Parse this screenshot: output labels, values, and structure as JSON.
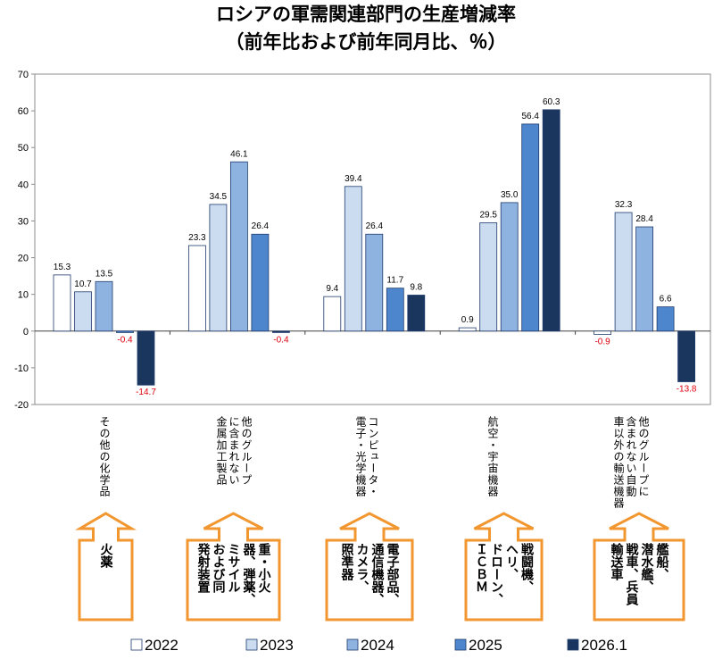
{
  "chart_data": {
    "type": "bar",
    "title": "ロシアの軍需関連部門の生産増減率",
    "subtitle": "（前年比および前年同月比、％）",
    "xlabel": "",
    "ylabel": "",
    "ylim": [
      -20,
      70
    ],
    "yticks": [
      70,
      60,
      50,
      40,
      30,
      20,
      10,
      0,
      -10,
      -20
    ],
    "grid": false,
    "legend_position": "bottom",
    "categories": [
      "その他の化学品",
      "他のグループに含まれない金属加工製品",
      "コンピュータ・電子・光学機器",
      "航空・宇宙機器",
      "他のグループに含まれない自動車以外の輸送機器"
    ],
    "category_lines": [
      [
        "その他の化学品"
      ],
      [
        "他のグループ",
        "に含まれない",
        "金属加工製品"
      ],
      [
        "コンピュータ・",
        "電子・光学機器"
      ],
      [
        "航空・宇宙機器"
      ],
      [
        "他のグループに",
        "含まれない自動",
        "車以外の輸送機器"
      ]
    ],
    "series": [
      {
        "name": "2022",
        "values": [
          15.3,
          23.3,
          9.4,
          0.9,
          -0.9
        ],
        "labels": [
          "15.3",
          "23.3",
          "9.4",
          "0.9",
          "-0.9"
        ]
      },
      {
        "name": "2023",
        "values": [
          10.7,
          34.5,
          39.4,
          29.5,
          32.3
        ],
        "labels": [
          "10.7",
          "34.5",
          "39.4",
          "29.5",
          "32.3"
        ]
      },
      {
        "name": "2024",
        "values": [
          13.5,
          46.1,
          26.4,
          35.0,
          28.4
        ],
        "labels": [
          "13.5",
          "46.1",
          "26.4",
          "35.0",
          "28.4"
        ]
      },
      {
        "name": "2025",
        "values": [
          -0.4,
          26.4,
          11.7,
          56.4,
          6.6
        ],
        "labels": [
          "-0.4",
          "26.4",
          "11.7",
          "56.4",
          "6.6"
        ]
      },
      {
        "name": "2026.1",
        "values": [
          -14.7,
          -0.4,
          9.8,
          60.3,
          -13.8
        ],
        "labels": [
          "-14.7",
          "-0.4",
          "9.8",
          "60.3",
          "-13.8"
        ]
      }
    ],
    "annotations": [
      {
        "label": "products",
        "lines": [
          "火薬"
        ]
      },
      {
        "label": "products",
        "lines": [
          "重・小火",
          "器、弾薬、",
          "ミサイル",
          "および同",
          "発射装置"
        ]
      },
      {
        "label": "products",
        "lines": [
          "電子部品、",
          "通信機器、",
          "カメラ、",
          "照準器"
        ]
      },
      {
        "label": "products",
        "lines": [
          "戦闘機、",
          "ヘリ、",
          "ドローン、",
          "ＩＣＢＭ"
        ]
      },
      {
        "label": "products",
        "lines": [
          "艦船、",
          "潜水艦、",
          "戦車、兵員",
          "輸送車"
        ]
      }
    ]
  },
  "colors": {
    "fills": [
      "#ffffff",
      "#ccdcf0",
      "#8fb3e0",
      "#4d86cd",
      "#1b365e"
    ],
    "bar_stroke": "#1f3b6e",
    "negative_label": "#e0000d",
    "arrow": "#f29630",
    "axis": "#8c8c8c"
  }
}
